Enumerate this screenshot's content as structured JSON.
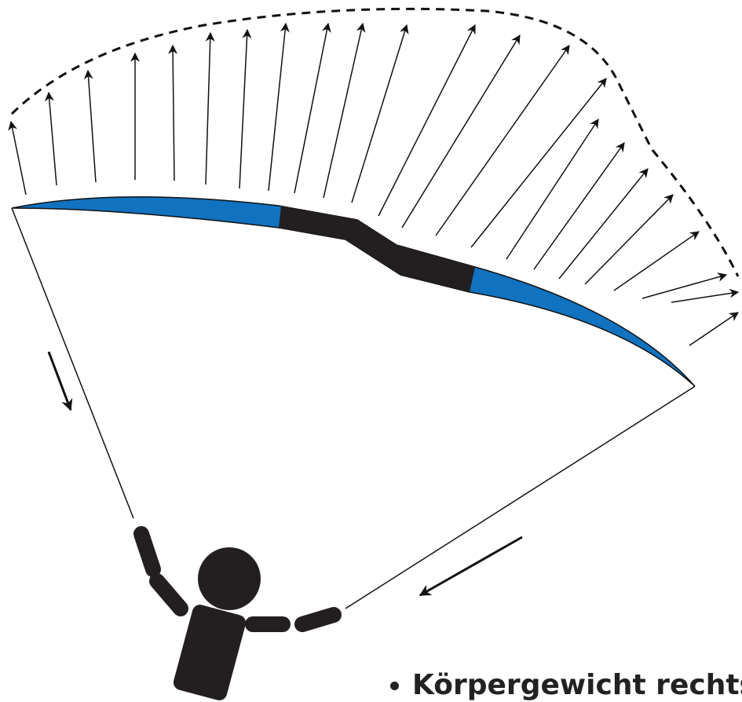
{
  "caption": "Körpergewicht rechts"
}
